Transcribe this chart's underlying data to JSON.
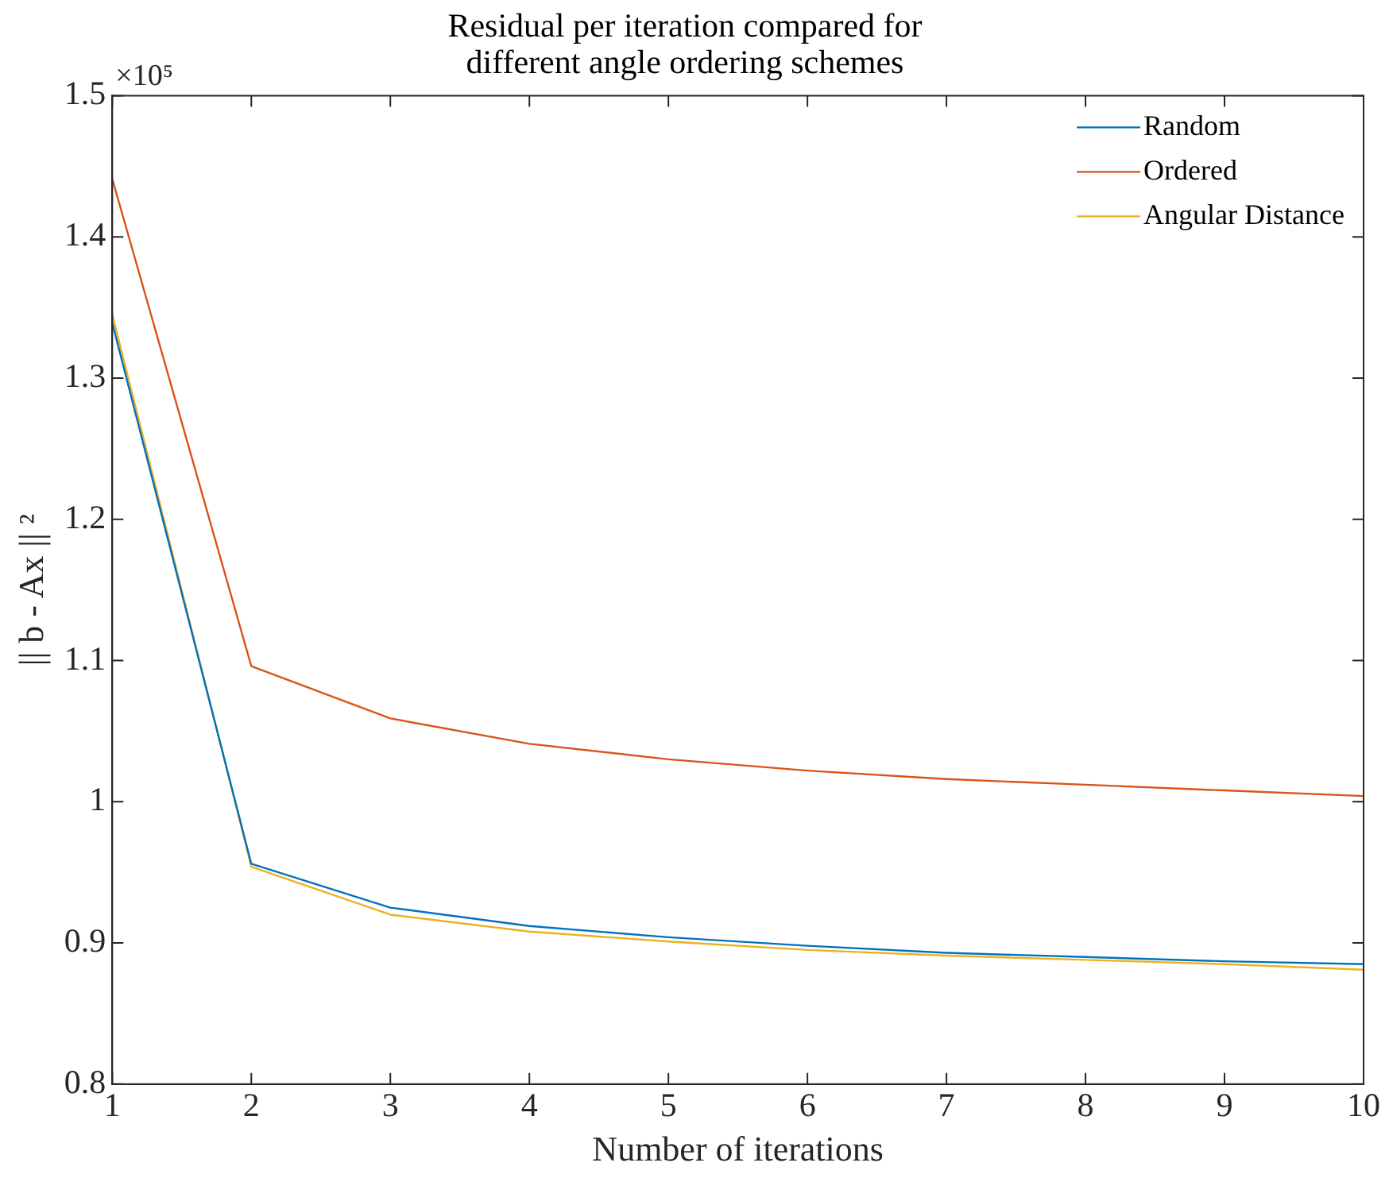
{
  "chart_data": {
    "type": "line",
    "title": "Residual per iteration compared for different angle ordering schemes",
    "xlabel": "Number of iterations",
    "ylabel": "|| b - Ax || ²",
    "annotations": [
      "×10⁵"
    ],
    "x": [
      1,
      2,
      3,
      4,
      5,
      6,
      7,
      8,
      9,
      10
    ],
    "series": [
      {
        "name": "Random",
        "color": "#0072bd",
        "values": [
          1.339,
          0.956,
          0.925,
          0.912,
          0.904,
          0.898,
          0.893,
          0.89,
          0.887,
          0.885
        ]
      },
      {
        "name": "Ordered",
        "color": "#d95319",
        "values": [
          1.441,
          1.096,
          1.059,
          1.041,
          1.03,
          1.022,
          1.016,
          1.012,
          1.008,
          1.004
        ]
      },
      {
        "name": "Angular Distance",
        "color": "#edb120",
        "values": [
          1.345,
          0.954,
          0.92,
          0.908,
          0.901,
          0.895,
          0.891,
          0.888,
          0.885,
          0.881
        ]
      }
    ],
    "xlim": [
      1,
      10
    ],
    "xticks": [
      1,
      2,
      3,
      4,
      5,
      6,
      7,
      8,
      9,
      10
    ],
    "ylim": [
      0.8,
      1.5
    ],
    "yticks": [
      0.8,
      {
        "value": 0.9,
        "label": "0.9"
      },
      {
        "value": 1,
        "label": "1"
      },
      {
        "value": 1.1,
        "label": "1.1"
      },
      {
        "value": 1.2,
        "label": "1.2"
      },
      {
        "value": 1.3,
        "label": "1.3"
      },
      {
        "value": 1.4,
        "label": "1.4"
      },
      1.5
    ],
    "grid": false,
    "legend": "top right",
    "marker": "none",
    "line_style": "solid"
  }
}
